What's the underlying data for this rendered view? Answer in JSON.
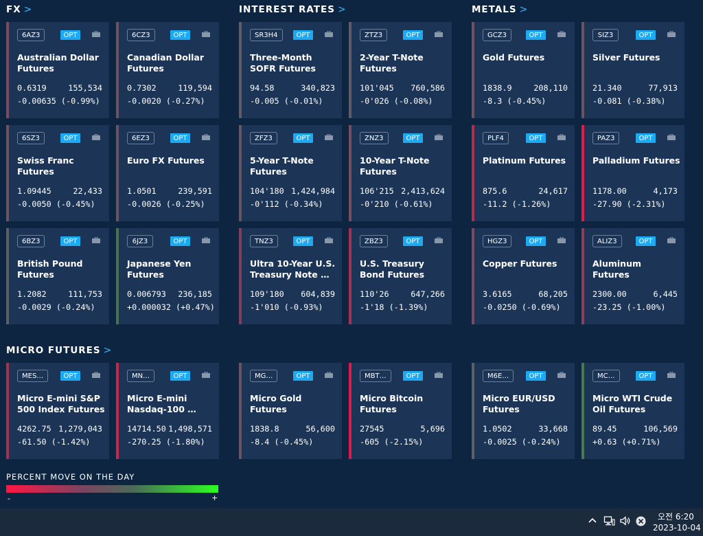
{
  "sections": {
    "fx": "FX",
    "rates": "INTEREST RATES",
    "metals": "METALS",
    "micro": "MICRO FUTURES"
  },
  "common": {
    "opt_label": "OPT"
  },
  "cards": [
    {
      "symbol": "6AZ3",
      "name": "Australian Dollar Futures",
      "price": "0.6319",
      "volume": "155,534",
      "change": "-0.00635 (-0.99%)",
      "color": "#7e4860"
    },
    {
      "symbol": "6CZ3",
      "name": "Canadian Dollar Futures",
      "price": "0.7302",
      "volume": "119,594",
      "change": "-0.0020 (-0.27%)",
      "color": "#6d5262"
    },
    {
      "symbol": "SR3H4",
      "name": "Three-Month SOFR Futures",
      "price": "94.58",
      "volume": "340,823",
      "change": "-0.005 (-0.01%)",
      "color": "#5e5d68"
    },
    {
      "symbol": "ZTZ3",
      "name": "2-Year T-Note Futures",
      "price": "101'045",
      "volume": "760,586",
      "change": "-0'026 (-0.08%)",
      "color": "#615b67"
    },
    {
      "symbol": "GCZ3",
      "name": "Gold Futures",
      "price": "1838.9",
      "volume": "208,110",
      "change": "-8.3 (-0.45%)",
      "color": "#6d5262"
    },
    {
      "symbol": "SIZ3",
      "name": "Silver Futures",
      "price": "21.340",
      "volume": "77,913",
      "change": "-0.081 (-0.38%)",
      "color": "#6a5464"
    },
    {
      "symbol": "6SZ3",
      "name": "Swiss Franc Futures",
      "price": "1.09445",
      "volume": "22,433",
      "change": "-0.0050 (-0.45%)",
      "color": "#6d5262"
    },
    {
      "symbol": "6EZ3",
      "name": "Euro FX Futures",
      "price": "1.0501",
      "volume": "239,591",
      "change": "-0.0026 (-0.25%)",
      "color": "#675565"
    },
    {
      "symbol": "ZFZ3",
      "name": "5-Year T-Note Futures",
      "price": "104'180",
      "volume": "1,424,984",
      "change": "-0'112 (-0.34%)",
      "color": "#6a5464"
    },
    {
      "symbol": "ZNZ3",
      "name": "10-Year T-Note Futures",
      "price": "106'215",
      "volume": "2,413,624",
      "change": "-0'210 (-0.61%)",
      "color": "#744d62"
    },
    {
      "symbol": "PLF4",
      "name": "Platinum Futures",
      "price": "875.6",
      "volume": "24,617",
      "change": "-11.2 (-1.26%)",
      "color": "#ad2f50"
    },
    {
      "symbol": "PAZ3",
      "name": "Palladium Futures",
      "price": "1178.00",
      "volume": "4,173",
      "change": "-27.90 (-2.31%)",
      "color": "#e81a45"
    },
    {
      "symbol": "6BZ3",
      "name": "British Pound Futures",
      "price": "1.2082",
      "volume": "111,753",
      "change": "-0.0029 (-0.24%)",
      "color": "#5b6066"
    },
    {
      "symbol": "6JZ3",
      "name": "Japanese Yen Futures",
      "price": "0.006793",
      "volume": "236,185",
      "change": "+0.000032 (+0.47%)",
      "color": "#4a7054"
    },
    {
      "symbol": "TNZ3",
      "name": "Ultra 10-Year U.S. Treasury Note …",
      "price": "109'180",
      "volume": "604,839",
      "change": "-1'010 (-0.93%)",
      "color": "#823f5c"
    },
    {
      "symbol": "ZBZ3",
      "name": "U.S. Treasury Bond Futures",
      "price": "110'26",
      "volume": "647,266",
      "change": "-1'18 (-1.39%)",
      "color": "#a43052"
    },
    {
      "symbol": "HGZ3",
      "name": "Copper Futures",
      "price": "3.6165",
      "volume": "68,205",
      "change": "-0.0250 (-0.69%)",
      "color": "#7a4a60"
    },
    {
      "symbol": "ALIZ3",
      "name": "Aluminum Futures",
      "price": "2300.00",
      "volume": "6,445",
      "change": "-23.25 (-1.00%)",
      "color": "#8a3f5b"
    },
    {
      "symbol": "MES…",
      "name": "Micro E-mini S&P 500 Index Futures",
      "price": "4262.75",
      "volume": "1,279,043",
      "change": "-61.50 (-1.42%)",
      "color": "#a5304f"
    },
    {
      "symbol": "MN…",
      "name": "Micro E-mini Nasdaq-100 …",
      "price": "14714.50",
      "volume": "1,498,571",
      "change": "-270.25 (-1.80%)",
      "color": "#c72749"
    },
    {
      "symbol": "MG…",
      "name": "Micro Gold Futures",
      "price": "1838.8",
      "volume": "56,600",
      "change": "-8.4 (-0.45%)",
      "color": "#6d5262"
    },
    {
      "symbol": "MBT…",
      "name": "Micro Bitcoin Futures",
      "price": "27545",
      "volume": "5,696",
      "change": "-605 (-2.15%)",
      "color": "#e0194a"
    },
    {
      "symbol": "M6E…",
      "name": "Micro EUR/USD Futures",
      "price": "1.0502",
      "volume": "33,668",
      "change": "-0.0025 (-0.24%)",
      "color": "#5b6066"
    },
    {
      "symbol": "MC…",
      "name": "Micro WTI Crude Oil Futures",
      "price": "89.45",
      "volume": "106,569",
      "change": "+0.63 (+0.71%)",
      "color": "#4b7a4f"
    }
  ],
  "legend": {
    "title": "PERCENT MOVE ON THE DAY",
    "minus": "-",
    "plus": "+"
  },
  "taskbar": {
    "time": "오전 6:20",
    "date": "2023-10-04"
  }
}
